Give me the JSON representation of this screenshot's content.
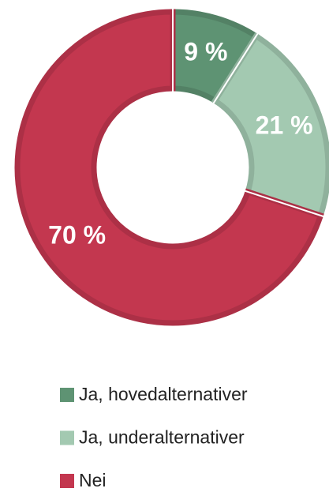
{
  "chart_data": {
    "type": "pie",
    "categories": [
      "Ja, hovedalternativer",
      "Ja, underalternativer",
      "Nei"
    ],
    "values": [
      9,
      21,
      70
    ],
    "value_labels": [
      "9 %",
      "21 %",
      "70 %"
    ],
    "colors": [
      "#5e9373",
      "#a3c9b1",
      "#c3374f"
    ],
    "legend": "bottom"
  }
}
